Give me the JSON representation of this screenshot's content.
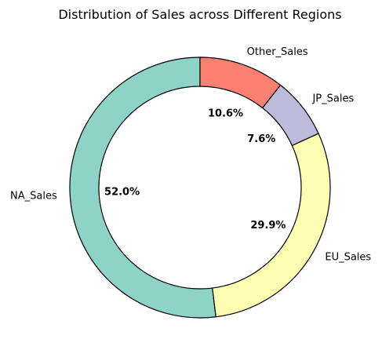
{
  "chart_data": {
    "type": "pie",
    "variant": "donut",
    "title": "Distribution of Sales across Different Regions",
    "categories": [
      "NA_Sales",
      "EU_Sales",
      "JP_Sales",
      "Other_Sales"
    ],
    "values": [
      52.0,
      29.9,
      7.6,
      10.6
    ],
    "value_labels": [
      "52.0%",
      "29.9%",
      "7.6%",
      "10.6%"
    ],
    "colors": [
      "#8dd3c7",
      "#ffffb3",
      "#bebada",
      "#fb8072"
    ],
    "start_angle_deg": 90,
    "direction": "counterclockwise",
    "edge_color": "#000000",
    "legend": "none"
  }
}
